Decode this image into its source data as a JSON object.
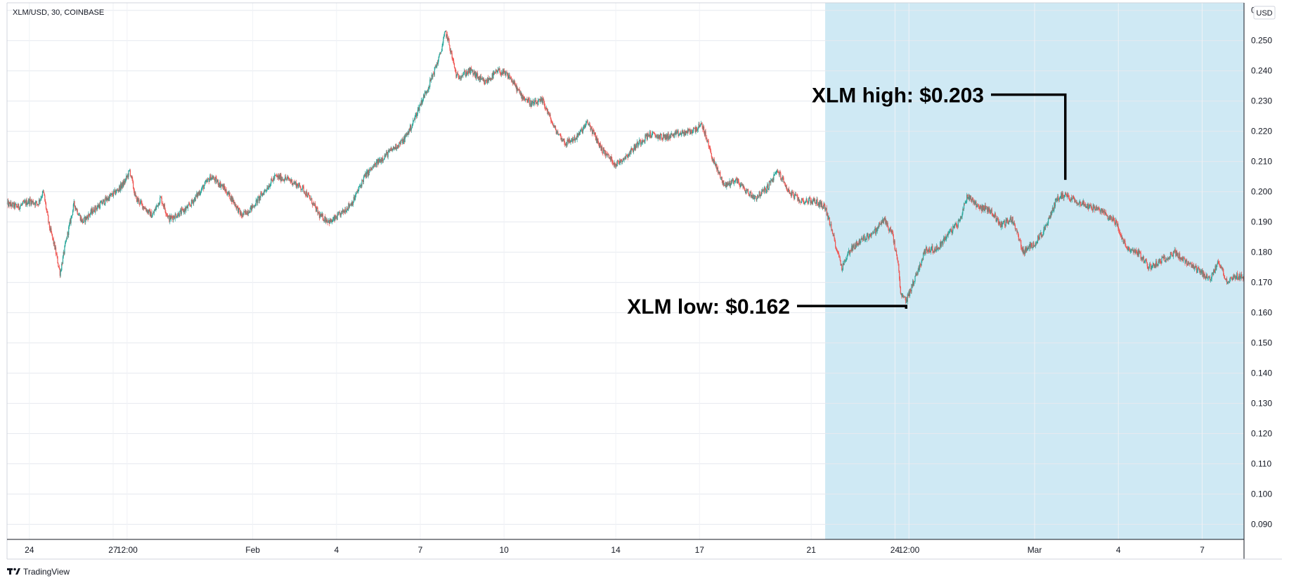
{
  "header": {
    "symbol": "XLM/USD, 30, COINBASE"
  },
  "price_axis": {
    "currency": "USD"
  },
  "footer": {
    "brand": "TradingView"
  },
  "colors": {
    "up": "#26a69a",
    "down": "#ef5350",
    "highlight": "#bfe1f0",
    "grid": "#f0f3fa",
    "axis": "#131722"
  },
  "chart_data": {
    "type": "candlestick",
    "ylim": [
      0.085,
      0.2625
    ],
    "y_ticks": [
      "0.260",
      "0.250",
      "0.240",
      "0.230",
      "0.220",
      "0.210",
      "0.200",
      "0.190",
      "0.180",
      "0.170",
      "0.160",
      "0.150",
      "0.140",
      "0.130",
      "0.120",
      "0.110",
      "0.100",
      "0.090"
    ],
    "x_ticks": [
      "24",
      "27",
      "12:00",
      "Feb",
      "4",
      "7",
      "10",
      "14",
      "17",
      "21",
      "24",
      "12:00",
      "Mar",
      "4",
      "7"
    ],
    "x_tick_days": [
      0,
      3,
      3.5,
      8,
      11,
      14,
      17,
      21,
      24,
      28,
      31,
      31.5,
      36,
      39,
      42
    ],
    "x_range_days": [
      -0.8,
      43.5
    ],
    "highlight_days": [
      28.5,
      43.5
    ],
    "price_path": [
      [
        -0.8,
        0.196
      ],
      [
        -0.4,
        0.195
      ],
      [
        0,
        0.197
      ],
      [
        0.3,
        0.196
      ],
      [
        0.5,
        0.2
      ],
      [
        0.7,
        0.189
      ],
      [
        0.9,
        0.182
      ],
      [
        1.1,
        0.173
      ],
      [
        1.3,
        0.183
      ],
      [
        1.6,
        0.196
      ],
      [
        1.9,
        0.19
      ],
      [
        2.3,
        0.194
      ],
      [
        2.7,
        0.197
      ],
      [
        3.1,
        0.2
      ],
      [
        3.4,
        0.203
      ],
      [
        3.6,
        0.207
      ],
      [
        3.8,
        0.198
      ],
      [
        4.1,
        0.195
      ],
      [
        4.4,
        0.192
      ],
      [
        4.7,
        0.198
      ],
      [
        5.0,
        0.191
      ],
      [
        5.4,
        0.193
      ],
      [
        5.7,
        0.195
      ],
      [
        6.1,
        0.2
      ],
      [
        6.5,
        0.205
      ],
      [
        6.9,
        0.202
      ],
      [
        7.3,
        0.197
      ],
      [
        7.6,
        0.192
      ],
      [
        8.0,
        0.195
      ],
      [
        8.4,
        0.2
      ],
      [
        8.8,
        0.205
      ],
      [
        9.3,
        0.204
      ],
      [
        9.8,
        0.201
      ],
      [
        10.1,
        0.197
      ],
      [
        10.4,
        0.192
      ],
      [
        10.8,
        0.19
      ],
      [
        11.2,
        0.193
      ],
      [
        11.6,
        0.197
      ],
      [
        12.0,
        0.205
      ],
      [
        12.5,
        0.21
      ],
      [
        13.0,
        0.214
      ],
      [
        13.4,
        0.217
      ],
      [
        13.7,
        0.222
      ],
      [
        14.0,
        0.229
      ],
      [
        14.3,
        0.235
      ],
      [
        14.7,
        0.245
      ],
      [
        14.9,
        0.253
      ],
      [
        15.0,
        0.25
      ],
      [
        15.3,
        0.238
      ],
      [
        15.8,
        0.24
      ],
      [
        16.3,
        0.236
      ],
      [
        16.8,
        0.24
      ],
      [
        17.2,
        0.238
      ],
      [
        17.6,
        0.232
      ],
      [
        18.0,
        0.229
      ],
      [
        18.4,
        0.23
      ],
      [
        18.8,
        0.221
      ],
      [
        19.2,
        0.216
      ],
      [
        19.6,
        0.218
      ],
      [
        20.0,
        0.223
      ],
      [
        20.5,
        0.214
      ],
      [
        21.0,
        0.209
      ],
      [
        21.4,
        0.212
      ],
      [
        21.8,
        0.216
      ],
      [
        22.2,
        0.219
      ],
      [
        22.7,
        0.218
      ],
      [
        23.2,
        0.219
      ],
      [
        23.7,
        0.22
      ],
      [
        24.1,
        0.222
      ],
      [
        24.5,
        0.21
      ],
      [
        24.9,
        0.202
      ],
      [
        25.3,
        0.204
      ],
      [
        25.7,
        0.2
      ],
      [
        26.0,
        0.198
      ],
      [
        26.4,
        0.201
      ],
      [
        26.8,
        0.207
      ],
      [
        27.2,
        0.2
      ],
      [
        27.6,
        0.197
      ],
      [
        28.1,
        0.197
      ],
      [
        28.5,
        0.195
      ],
      [
        28.8,
        0.185
      ],
      [
        29.1,
        0.175
      ],
      [
        29.4,
        0.181
      ],
      [
        29.8,
        0.184
      ],
      [
        30.3,
        0.187
      ],
      [
        30.6,
        0.191
      ],
      [
        30.9,
        0.186
      ],
      [
        31.1,
        0.177
      ],
      [
        31.2,
        0.166
      ],
      [
        31.4,
        0.164
      ],
      [
        31.7,
        0.171
      ],
      [
        32.1,
        0.181
      ],
      [
        32.5,
        0.181
      ],
      [
        32.9,
        0.186
      ],
      [
        33.3,
        0.19
      ],
      [
        33.6,
        0.199
      ],
      [
        34.0,
        0.195
      ],
      [
        34.4,
        0.194
      ],
      [
        34.8,
        0.189
      ],
      [
        35.2,
        0.191
      ],
      [
        35.6,
        0.18
      ],
      [
        36.0,
        0.183
      ],
      [
        36.4,
        0.188
      ],
      [
        36.8,
        0.198
      ],
      [
        37.1,
        0.199
      ],
      [
        37.5,
        0.197
      ],
      [
        38.0,
        0.195
      ],
      [
        38.5,
        0.193
      ],
      [
        38.9,
        0.19
      ],
      [
        39.3,
        0.181
      ],
      [
        39.7,
        0.18
      ],
      [
        40.1,
        0.175
      ],
      [
        40.5,
        0.177
      ],
      [
        41.0,
        0.18
      ],
      [
        41.5,
        0.176
      ],
      [
        42.0,
        0.173
      ],
      [
        42.3,
        0.171
      ],
      [
        42.6,
        0.177
      ],
      [
        42.9,
        0.17
      ],
      [
        43.2,
        0.172
      ],
      [
        43.5,
        0.172
      ]
    ],
    "annotations": [
      {
        "text": "XLM high: $0.203",
        "day": 37.1,
        "value": 0.203,
        "side": "left"
      },
      {
        "text": "XLM low: $0.162",
        "day": 31.4,
        "value": 0.162,
        "side": "left"
      }
    ]
  }
}
